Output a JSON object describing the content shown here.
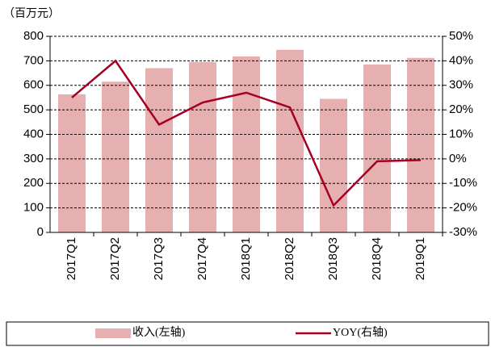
{
  "chart_data": {
    "type": "bar",
    "unit_label": "（百万元）",
    "categories": [
      "2017Q1",
      "2017Q2",
      "2017Q3",
      "2017Q4",
      "2018Q1",
      "2018Q2",
      "2018Q3",
      "2018Q4",
      "2019Q1"
    ],
    "series": [
      {
        "name": "收入(左轴)",
        "type": "bar",
        "color": "#e6b0b0",
        "axis": "y",
        "values": [
          563,
          615,
          670,
          695,
          718,
          745,
          545,
          685,
          712
        ]
      },
      {
        "name": "YOY(右轴)",
        "type": "line",
        "color": "#a50021",
        "axis": "y2",
        "values": [
          25,
          40,
          14,
          23,
          27,
          21,
          -19,
          -1,
          -0.5
        ]
      }
    ],
    "ylim": [
      0,
      800
    ],
    "yticks": [
      0,
      100,
      200,
      300,
      400,
      500,
      600,
      700,
      800
    ],
    "y2lim": [
      -30,
      50
    ],
    "y2ticks": [
      {
        "value": -30,
        "label": "-30%"
      },
      {
        "value": -20,
        "label": "-20%"
      },
      {
        "value": -10,
        "label": "-10%"
      },
      {
        "value": 0,
        "label": "0%"
      },
      {
        "value": 10,
        "label": "10%"
      },
      {
        "value": 20,
        "label": "20%"
      },
      {
        "value": 30,
        "label": "30%"
      },
      {
        "value": 40,
        "label": "40%"
      },
      {
        "value": 50,
        "label": "50%"
      }
    ],
    "grid": true,
    "legend": "bottom"
  }
}
